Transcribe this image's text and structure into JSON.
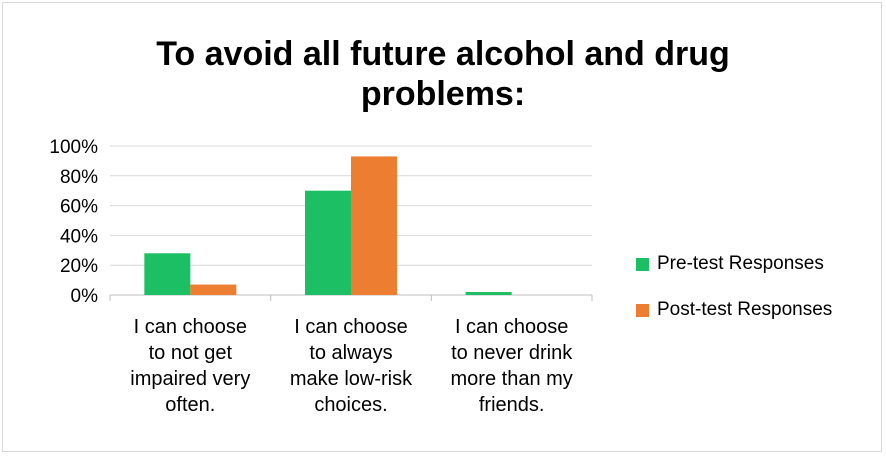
{
  "chart_data": {
    "type": "bar",
    "title_lines": [
      "To avoid all future alcohol and drug",
      "problems:"
    ],
    "categories": [
      [
        "I can choose",
        "to not get",
        "impaired very",
        "often."
      ],
      [
        "I can choose",
        "to always",
        "make low-risk",
        "choices."
      ],
      [
        "I can choose",
        "to never drink",
        "more than my",
        "friends."
      ]
    ],
    "series": [
      {
        "name": "Pre-test Responses",
        "color": "#1dbf64",
        "values": [
          0.28,
          0.7,
          0.02
        ]
      },
      {
        "name": "Post-test Responses",
        "color": "#ed7d31",
        "values": [
          0.07,
          0.93,
          0.0
        ]
      }
    ],
    "ylim": [
      0,
      1
    ],
    "yticks": [
      {
        "value": 0,
        "label": "0%"
      },
      {
        "value": 0.2,
        "label": "20%"
      },
      {
        "value": 0.4,
        "label": "40%"
      },
      {
        "value": 0.6,
        "label": "60%"
      },
      {
        "value": 0.8,
        "label": "80%"
      },
      {
        "value": 1.0,
        "label": "100%"
      }
    ],
    "grid": true,
    "legend_position": "right"
  }
}
